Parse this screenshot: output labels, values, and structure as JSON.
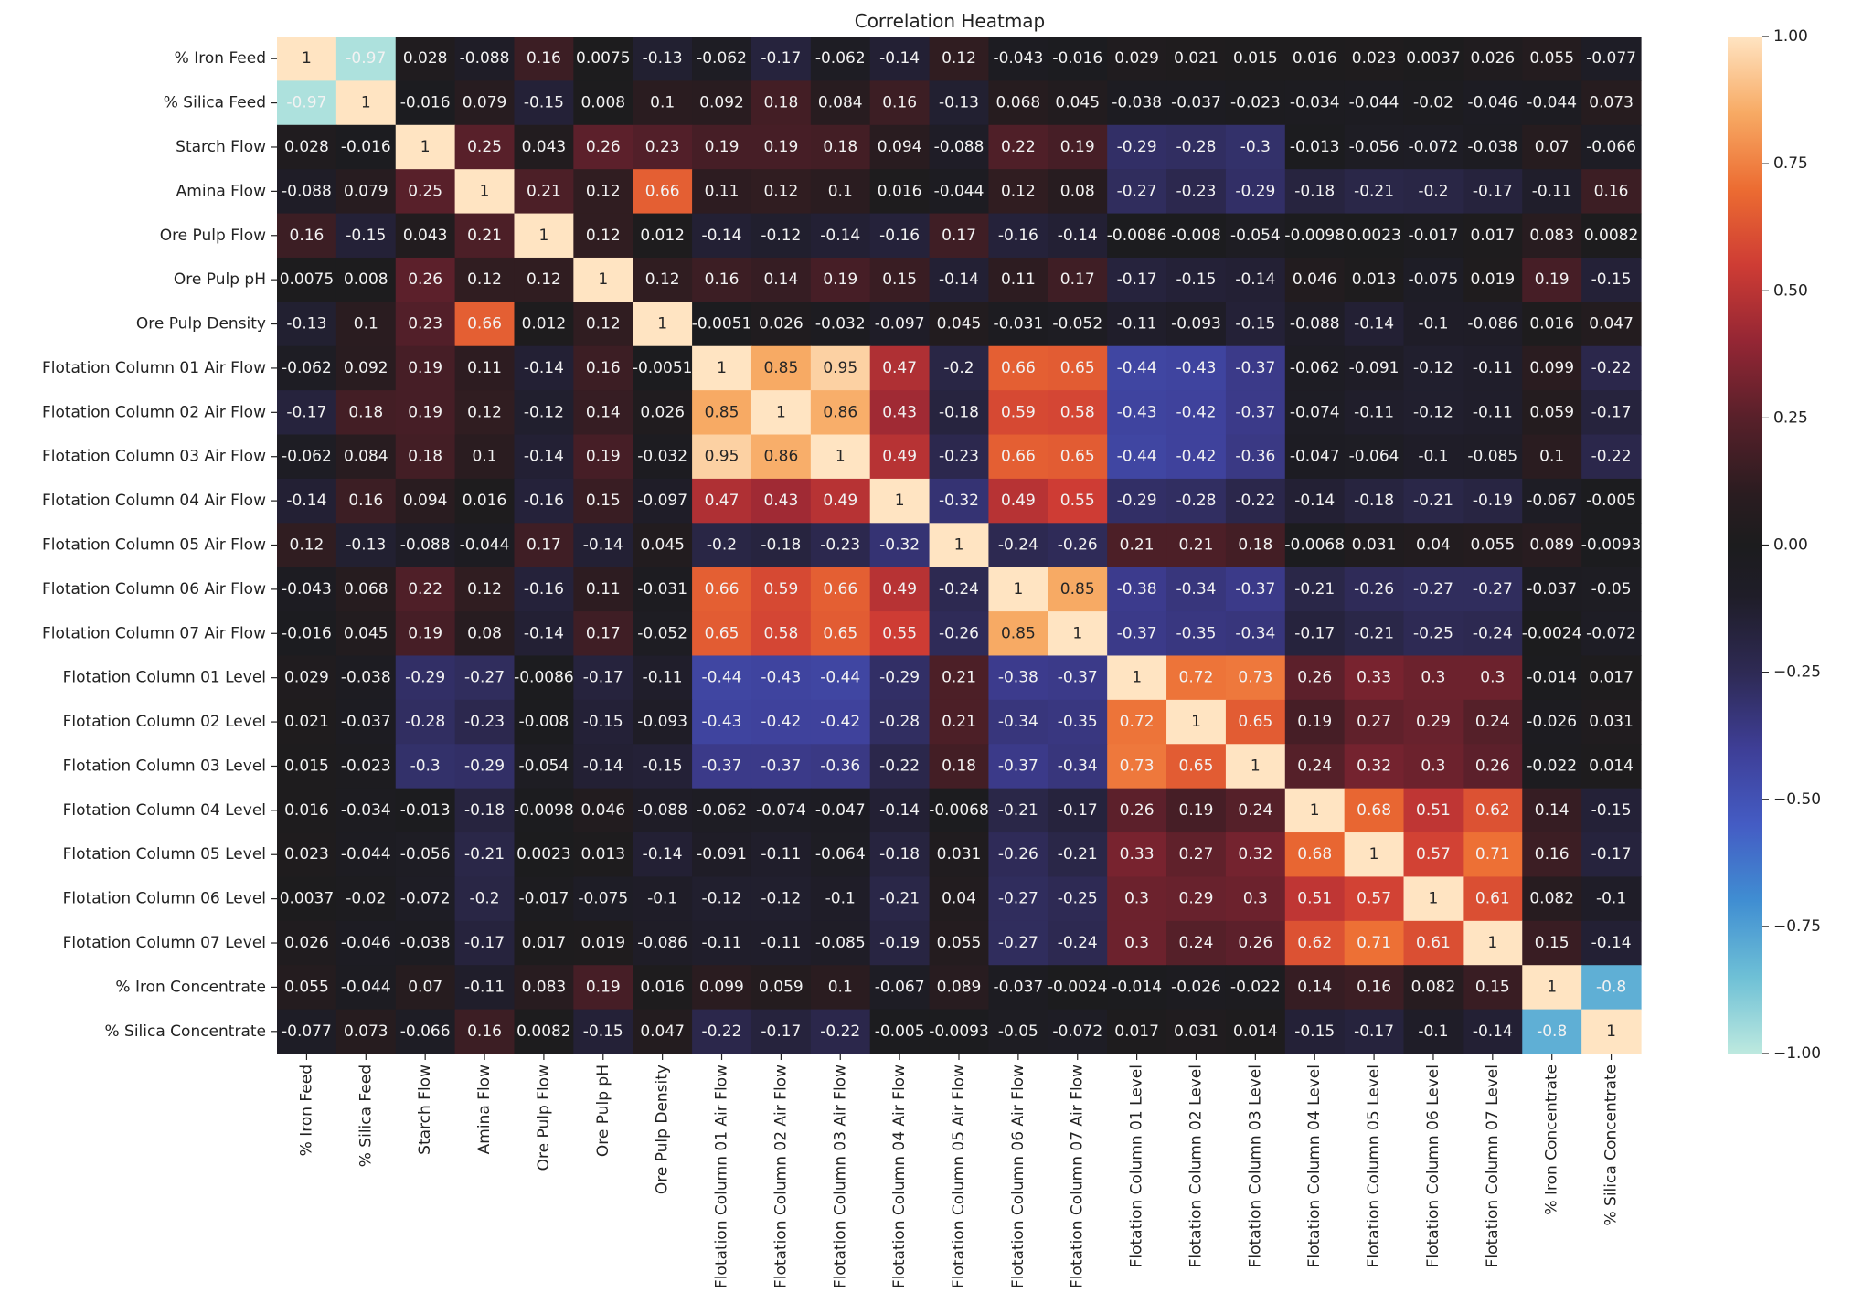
{
  "chart_data": {
    "type": "heatmap",
    "title": "Correlation Heatmap",
    "xlabel": "",
    "ylabel": "",
    "labels": [
      "% Iron Feed",
      "% Silica Feed",
      "Starch Flow",
      "Amina Flow",
      "Ore Pulp Flow",
      "Ore Pulp pH",
      "Ore Pulp Density",
      "Flotation Column 01 Air Flow",
      "Flotation Column 02 Air Flow",
      "Flotation Column 03 Air Flow",
      "Flotation Column 04 Air Flow",
      "Flotation Column 05 Air Flow",
      "Flotation Column 06 Air Flow",
      "Flotation Column 07 Air Flow",
      "Flotation Column 01 Level",
      "Flotation Column 02 Level",
      "Flotation Column 03 Level",
      "Flotation Column 04 Level",
      "Flotation Column 05 Level",
      "Flotation Column 06 Level",
      "Flotation Column 07 Level",
      "% Iron Concentrate",
      "% Silica Concentrate"
    ],
    "matrix": [
      [
        "1",
        "-0.97",
        "0.028",
        "-0.088",
        "0.16",
        "0.0075",
        "-0.13",
        "-0.062",
        "-0.17",
        "-0.062",
        "-0.14",
        "0.12",
        "-0.043",
        "-0.016",
        "0.029",
        "0.021",
        "0.015",
        "0.016",
        "0.023",
        "0.0037",
        "0.026",
        "0.055",
        "-0.077"
      ],
      [
        "-0.97",
        "1",
        "-0.016",
        "0.079",
        "-0.15",
        "0.008",
        "0.1",
        "0.092",
        "0.18",
        "0.084",
        "0.16",
        "-0.13",
        "0.068",
        "0.045",
        "-0.038",
        "-0.037",
        "-0.023",
        "-0.034",
        "-0.044",
        "-0.02",
        "-0.046",
        "-0.044",
        "0.073"
      ],
      [
        "0.028",
        "-0.016",
        "1",
        "0.25",
        "0.043",
        "0.26",
        "0.23",
        "0.19",
        "0.19",
        "0.18",
        "0.094",
        "-0.088",
        "0.22",
        "0.19",
        "-0.29",
        "-0.28",
        "-0.3",
        "-0.013",
        "-0.056",
        "-0.072",
        "-0.038",
        "0.07",
        "-0.066"
      ],
      [
        "-0.088",
        "0.079",
        "0.25",
        "1",
        "0.21",
        "0.12",
        "0.66",
        "0.11",
        "0.12",
        "0.1",
        "0.016",
        "-0.044",
        "0.12",
        "0.08",
        "-0.27",
        "-0.23",
        "-0.29",
        "-0.18",
        "-0.21",
        "-0.2",
        "-0.17",
        "-0.11",
        "0.16"
      ],
      [
        "0.16",
        "-0.15",
        "0.043",
        "0.21",
        "1",
        "0.12",
        "0.012",
        "-0.14",
        "-0.12",
        "-0.14",
        "-0.16",
        "0.17",
        "-0.16",
        "-0.14",
        "-0.0086",
        "-0.008",
        "-0.054",
        "-0.0098",
        "0.0023",
        "-0.017",
        "0.017",
        "0.083",
        "0.0082"
      ],
      [
        "0.0075",
        "0.008",
        "0.26",
        "0.12",
        "0.12",
        "1",
        "0.12",
        "0.16",
        "0.14",
        "0.19",
        "0.15",
        "-0.14",
        "0.11",
        "0.17",
        "-0.17",
        "-0.15",
        "-0.14",
        "0.046",
        "0.013",
        "-0.075",
        "0.019",
        "0.19",
        "-0.15"
      ],
      [
        "-0.13",
        "0.1",
        "0.23",
        "0.66",
        "0.012",
        "0.12",
        "1",
        "-0.0051",
        "0.026",
        "-0.032",
        "-0.097",
        "0.045",
        "-0.031",
        "-0.052",
        "-0.11",
        "-0.093",
        "-0.15",
        "-0.088",
        "-0.14",
        "-0.1",
        "-0.086",
        "0.016",
        "0.047"
      ],
      [
        "-0.062",
        "0.092",
        "0.19",
        "0.11",
        "-0.14",
        "0.16",
        "-0.0051",
        "1",
        "0.85",
        "0.95",
        "0.47",
        "-0.2",
        "0.66",
        "0.65",
        "-0.44",
        "-0.43",
        "-0.37",
        "-0.062",
        "-0.091",
        "-0.12",
        "-0.11",
        "0.099",
        "-0.22"
      ],
      [
        "-0.17",
        "0.18",
        "0.19",
        "0.12",
        "-0.12",
        "0.14",
        "0.026",
        "0.85",
        "1",
        "0.86",
        "0.43",
        "-0.18",
        "0.59",
        "0.58",
        "-0.43",
        "-0.42",
        "-0.37",
        "-0.074",
        "-0.11",
        "-0.12",
        "-0.11",
        "0.059",
        "-0.17"
      ],
      [
        "-0.062",
        "0.084",
        "0.18",
        "0.1",
        "-0.14",
        "0.19",
        "-0.032",
        "0.95",
        "0.86",
        "1",
        "0.49",
        "-0.23",
        "0.66",
        "0.65",
        "-0.44",
        "-0.42",
        "-0.36",
        "-0.047",
        "-0.064",
        "-0.1",
        "-0.085",
        "0.1",
        "-0.22"
      ],
      [
        "-0.14",
        "0.16",
        "0.094",
        "0.016",
        "-0.16",
        "0.15",
        "-0.097",
        "0.47",
        "0.43",
        "0.49",
        "1",
        "-0.32",
        "0.49",
        "0.55",
        "-0.29",
        "-0.28",
        "-0.22",
        "-0.14",
        "-0.18",
        "-0.21",
        "-0.19",
        "-0.067",
        "-0.005"
      ],
      [
        "0.12",
        "-0.13",
        "-0.088",
        "-0.044",
        "0.17",
        "-0.14",
        "0.045",
        "-0.2",
        "-0.18",
        "-0.23",
        "-0.32",
        "1",
        "-0.24",
        "-0.26",
        "0.21",
        "0.21",
        "0.18",
        "-0.0068",
        "0.031",
        "0.04",
        "0.055",
        "0.089",
        "-0.0093"
      ],
      [
        "-0.043",
        "0.068",
        "0.22",
        "0.12",
        "-0.16",
        "0.11",
        "-0.031",
        "0.66",
        "0.59",
        "0.66",
        "0.49",
        "-0.24",
        "1",
        "0.85",
        "-0.38",
        "-0.34",
        "-0.37",
        "-0.21",
        "-0.26",
        "-0.27",
        "-0.27",
        "-0.037",
        "-0.05"
      ],
      [
        "-0.016",
        "0.045",
        "0.19",
        "0.08",
        "-0.14",
        "0.17",
        "-0.052",
        "0.65",
        "0.58",
        "0.65",
        "0.55",
        "-0.26",
        "0.85",
        "1",
        "-0.37",
        "-0.35",
        "-0.34",
        "-0.17",
        "-0.21",
        "-0.25",
        "-0.24",
        "-0.0024",
        "-0.072"
      ],
      [
        "0.029",
        "-0.038",
        "-0.29",
        "-0.27",
        "-0.0086",
        "-0.17",
        "-0.11",
        "-0.44",
        "-0.43",
        "-0.44",
        "-0.29",
        "0.21",
        "-0.38",
        "-0.37",
        "1",
        "0.72",
        "0.73",
        "0.26",
        "0.33",
        "0.3",
        "0.3",
        "-0.014",
        "0.017"
      ],
      [
        "0.021",
        "-0.037",
        "-0.28",
        "-0.23",
        "-0.008",
        "-0.15",
        "-0.093",
        "-0.43",
        "-0.42",
        "-0.42",
        "-0.28",
        "0.21",
        "-0.34",
        "-0.35",
        "0.72",
        "1",
        "0.65",
        "0.19",
        "0.27",
        "0.29",
        "0.24",
        "-0.026",
        "0.031"
      ],
      [
        "0.015",
        "-0.023",
        "-0.3",
        "-0.29",
        "-0.054",
        "-0.14",
        "-0.15",
        "-0.37",
        "-0.37",
        "-0.36",
        "-0.22",
        "0.18",
        "-0.37",
        "-0.34",
        "0.73",
        "0.65",
        "1",
        "0.24",
        "0.32",
        "0.3",
        "0.26",
        "-0.022",
        "0.014"
      ],
      [
        "0.016",
        "-0.034",
        "-0.013",
        "-0.18",
        "-0.0098",
        "0.046",
        "-0.088",
        "-0.062",
        "-0.074",
        "-0.047",
        "-0.14",
        "-0.0068",
        "-0.21",
        "-0.17",
        "0.26",
        "0.19",
        "0.24",
        "1",
        "0.68",
        "0.51",
        "0.62",
        "0.14",
        "-0.15"
      ],
      [
        "0.023",
        "-0.044",
        "-0.056",
        "-0.21",
        "0.0023",
        "0.013",
        "-0.14",
        "-0.091",
        "-0.11",
        "-0.064",
        "-0.18",
        "0.031",
        "-0.26",
        "-0.21",
        "0.33",
        "0.27",
        "0.32",
        "0.68",
        "1",
        "0.57",
        "0.71",
        "0.16",
        "-0.17"
      ],
      [
        "0.0037",
        "-0.02",
        "-0.072",
        "-0.2",
        "-0.017",
        "-0.075",
        "-0.1",
        "-0.12",
        "-0.12",
        "-0.1",
        "-0.21",
        "0.04",
        "-0.27",
        "-0.25",
        "0.3",
        "0.29",
        "0.3",
        "0.51",
        "0.57",
        "1",
        "0.61",
        "0.082",
        "-0.1"
      ],
      [
        "0.026",
        "-0.046",
        "-0.038",
        "-0.17",
        "0.017",
        "0.019",
        "-0.086",
        "-0.11",
        "-0.11",
        "-0.085",
        "-0.19",
        "0.055",
        "-0.27",
        "-0.24",
        "0.3",
        "0.24",
        "0.26",
        "0.62",
        "0.71",
        "0.61",
        "1",
        "0.15",
        "-0.14"
      ],
      [
        "0.055",
        "-0.044",
        "0.07",
        "-0.11",
        "0.083",
        "0.19",
        "0.016",
        "0.099",
        "0.059",
        "0.1",
        "-0.067",
        "0.089",
        "-0.037",
        "-0.0024",
        "-0.014",
        "-0.026",
        "-0.022",
        "0.14",
        "0.16",
        "0.082",
        "0.15",
        "1",
        "-0.8"
      ],
      [
        "-0.077",
        "0.073",
        "-0.066",
        "0.16",
        "0.0082",
        "-0.15",
        "0.047",
        "-0.22",
        "-0.17",
        "-0.22",
        "-0.005",
        "-0.0093",
        "-0.05",
        "-0.072",
        "0.017",
        "0.031",
        "0.014",
        "-0.15",
        "-0.17",
        "-0.1",
        "-0.14",
        "-0.8",
        "1"
      ]
    ],
    "colorbar": {
      "range": [
        -1.0,
        1.0
      ],
      "ticks": [
        "1.00",
        "0.75",
        "0.50",
        "0.25",
        "0.00",
        "−0.25",
        "−0.50",
        "−0.75",
        "−1.00"
      ],
      "tick_values": [
        1.0,
        0.75,
        0.5,
        0.25,
        0.0,
        -0.25,
        -0.5,
        -0.75,
        -1.0
      ]
    },
    "colormap": "icefire",
    "grid": false,
    "legend": "colorbar-right"
  }
}
